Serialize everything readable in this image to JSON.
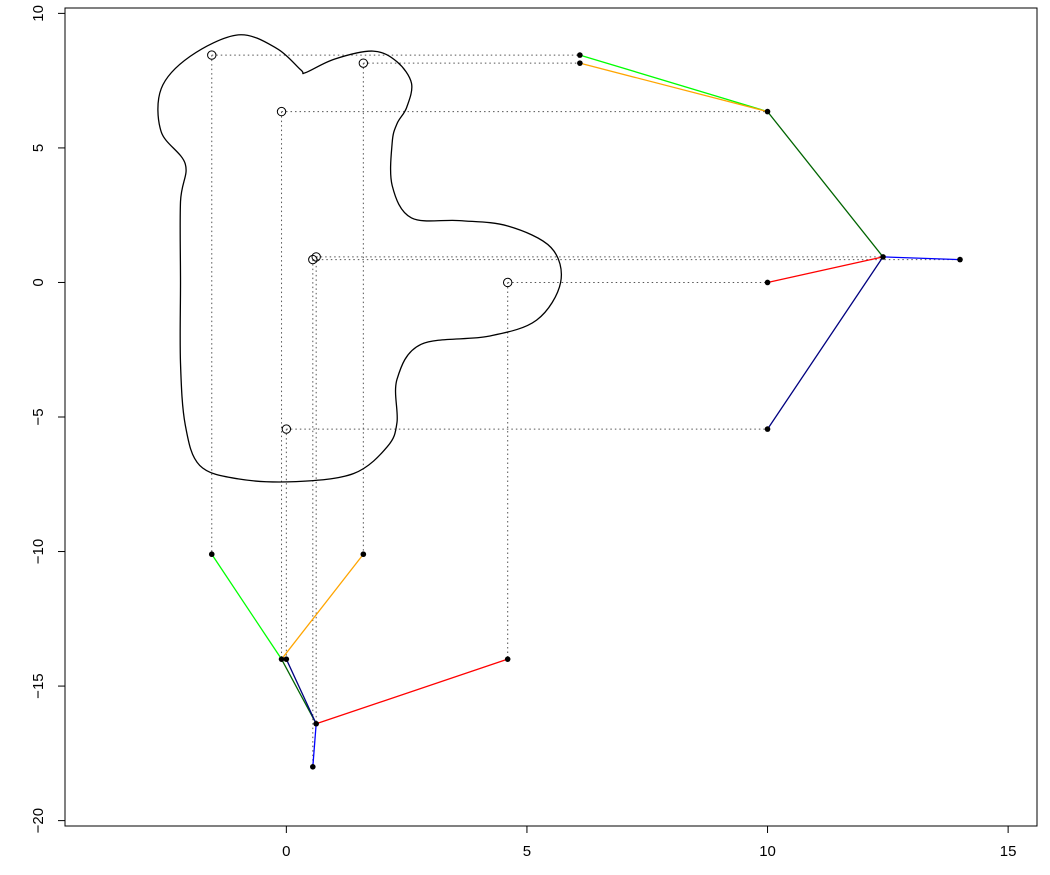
{
  "chart_data": {
    "type": "scatter",
    "xlim": [
      -4.6,
      15.6
    ],
    "ylim": [
      -20.2,
      10.2
    ],
    "x_ticks": [
      0,
      5,
      10,
      15
    ],
    "y_ticks": [
      -20,
      -15,
      -10,
      -5,
      0,
      5,
      10
    ],
    "x_tick_labels": [
      "0",
      "5",
      "10",
      "15"
    ],
    "y_tick_labels": [
      "−20",
      "−15",
      "−10",
      "−5",
      "0",
      "5",
      "10"
    ],
    "grid": false,
    "colors": {
      "green": "#00ff00",
      "orange": "#ffa500",
      "darkgreen": "#006400",
      "red": "#ff0000",
      "navy": "#000080",
      "blue": "#0000ff",
      "outline": "#000000",
      "guide": "#555555"
    },
    "outline": [
      [
        0.4,
        7.8
      ],
      [
        1.0,
        8.3
      ],
      [
        1.8,
        8.6
      ],
      [
        2.3,
        8.2
      ],
      [
        2.6,
        7.4
      ],
      [
        2.5,
        6.5
      ],
      [
        2.3,
        5.9
      ],
      [
        2.2,
        5.2
      ],
      [
        2.2,
        3.6
      ],
      [
        2.6,
        2.4
      ],
      [
        3.6,
        2.3
      ],
      [
        4.6,
        2.1
      ],
      [
        5.5,
        1.3
      ],
      [
        5.7,
        0.0
      ],
      [
        5.2,
        -1.4
      ],
      [
        4.2,
        -2.0
      ],
      [
        2.8,
        -2.3
      ],
      [
        2.3,
        -3.6
      ],
      [
        2.3,
        -5.2
      ],
      [
        2.1,
        -6.1
      ],
      [
        1.4,
        -7.1
      ],
      [
        0.2,
        -7.4
      ],
      [
        -1.0,
        -7.3
      ],
      [
        -1.8,
        -6.8
      ],
      [
        -2.1,
        -5.3
      ],
      [
        -2.2,
        -3.0
      ],
      [
        -2.2,
        0.0
      ],
      [
        -2.2,
        3.0
      ],
      [
        -2.1,
        4.4
      ],
      [
        -2.6,
        5.6
      ],
      [
        -2.6,
        7.2
      ],
      [
        -2.0,
        8.4
      ],
      [
        -1.0,
        9.2
      ],
      [
        -0.2,
        8.7
      ],
      [
        0.3,
        7.9
      ]
    ],
    "points": [
      {
        "x": -1.55,
        "y": 8.45
      },
      {
        "x": 1.6,
        "y": 8.15
      },
      {
        "x": -0.1,
        "y": 6.35
      },
      {
        "x": 0.55,
        "y": 0.85
      },
      {
        "x": 0.62,
        "y": 0.95
      },
      {
        "x": 4.6,
        "y": 0.0
      },
      {
        "x": 0.0,
        "y": -5.45
      }
    ],
    "right_tree": {
      "nodes": [
        {
          "x": 6.1,
          "y": 8.45
        },
        {
          "x": 6.1,
          "y": 8.15
        },
        {
          "x": 10.0,
          "y": 6.35
        },
        {
          "x": 12.4,
          "y": 0.95
        },
        {
          "x": 14.0,
          "y": 0.85
        },
        {
          "x": 10.0,
          "y": 0.0
        },
        {
          "x": 10.0,
          "y": -5.45
        }
      ],
      "edges": [
        {
          "from": 0,
          "to": 2,
          "color": "green"
        },
        {
          "from": 1,
          "to": 2,
          "color": "orange"
        },
        {
          "from": 2,
          "to": 3,
          "color": "darkgreen"
        },
        {
          "from": 5,
          "to": 3,
          "color": "red"
        },
        {
          "from": 6,
          "to": 3,
          "color": "navy"
        },
        {
          "from": 3,
          "to": 4,
          "color": "blue"
        }
      ]
    },
    "bottom_tree": {
      "nodes": [
        {
          "x": -1.55,
          "y": -10.1
        },
        {
          "x": 1.6,
          "y": -10.1
        },
        {
          "x": -0.1,
          "y": -14.0
        },
        {
          "x": 0.0,
          "y": -14.0
        },
        {
          "x": 0.62,
          "y": -16.4
        },
        {
          "x": 4.6,
          "y": -14.0
        },
        {
          "x": 0.55,
          "y": -18.0
        }
      ],
      "edges": [
        {
          "from": 0,
          "to": 2,
          "color": "green"
        },
        {
          "from": 1,
          "to": 2,
          "color": "orange"
        },
        {
          "from": 2,
          "to": 4,
          "color": "darkgreen"
        },
        {
          "from": 3,
          "to": 4,
          "color": "navy"
        },
        {
          "from": 5,
          "to": 4,
          "color": "red"
        },
        {
          "from": 4,
          "to": 6,
          "color": "blue"
        }
      ]
    },
    "guides_horizontal": [
      {
        "y": 8.45,
        "x1": -1.55,
        "x2": 6.1
      },
      {
        "y": 8.15,
        "x1": 1.6,
        "x2": 6.1
      },
      {
        "y": 6.35,
        "x1": -0.1,
        "x2": 10.0
      },
      {
        "y": 0.85,
        "x1": 0.55,
        "x2": 14.0
      },
      {
        "y": 0.95,
        "x1": 0.62,
        "x2": 12.4
      },
      {
        "y": 0.0,
        "x1": 4.6,
        "x2": 10.0
      },
      {
        "y": -5.45,
        "x1": 0.0,
        "x2": 10.0
      }
    ],
    "guides_vertical": [
      {
        "x": -1.55,
        "y1": 8.45,
        "y2": -10.1
      },
      {
        "x": 1.6,
        "y1": 8.15,
        "y2": -10.1
      },
      {
        "x": -0.1,
        "y1": 6.35,
        "y2": -14.0
      },
      {
        "x": 0.55,
        "y1": 0.85,
        "y2": -18.0
      },
      {
        "x": 0.62,
        "y1": 0.95,
        "y2": -16.4
      },
      {
        "x": 4.6,
        "y1": 0.0,
        "y2": -14.0
      },
      {
        "x": 0.0,
        "y1": -5.45,
        "y2": -14.0
      }
    ]
  }
}
